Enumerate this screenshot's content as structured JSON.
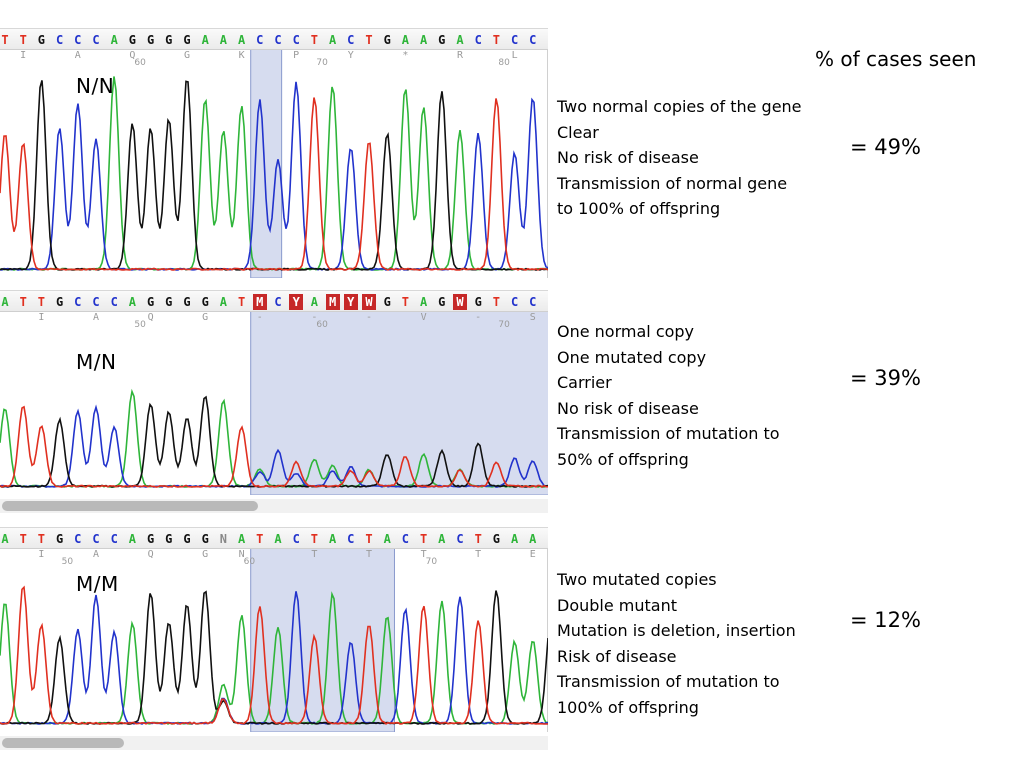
{
  "header": {
    "pct_title": "% of cases seen"
  },
  "colors": {
    "A": "#2fb53a",
    "C": "#2233cc",
    "G": "#111111",
    "T": "#e03020",
    "N": "#888888",
    "amb_bg": "#c62828",
    "highlight": "#d6dcef",
    "highlight_border": "#8a9acd"
  },
  "panels": [
    {
      "genotype": "N/N",
      "sequence": "TTGCCCAGGGGAAACCCTACTGAAGACTCC",
      "amino_acids": [
        {
          "idx": 0,
          "aa": "I"
        },
        {
          "idx": 3,
          "aa": "A"
        },
        {
          "idx": 6,
          "aa": "Q"
        },
        {
          "idx": 9,
          "aa": "G"
        },
        {
          "idx": 12,
          "aa": "K"
        },
        {
          "idx": 15,
          "aa": "P"
        },
        {
          "idx": 18,
          "aa": "Y"
        },
        {
          "idx": 21,
          "aa": "*"
        },
        {
          "idx": 24,
          "aa": "R"
        },
        {
          "idx": 27,
          "aa": "L"
        }
      ],
      "ticks": [
        {
          "idx": 7,
          "label": "60"
        },
        {
          "idx": 17,
          "label": "70"
        },
        {
          "idx": 27,
          "label": "80"
        }
      ],
      "description": [
        "Two normal copies of the gene",
        "Clear",
        "No risk of disease",
        "Transmission of normal gene",
        "to 100% of offspring"
      ],
      "percent": "= 49%"
    },
    {
      "genotype": "M/N",
      "sequence": "ATTGCCCAGGGGATMCYAMYWGTAGWGTCC",
      "ambiguous": [
        14,
        16,
        18,
        19,
        20,
        25
      ],
      "amino_acids": [
        {
          "idx": 1,
          "aa": "I"
        },
        {
          "idx": 4,
          "aa": "A"
        },
        {
          "idx": 7,
          "aa": "Q"
        },
        {
          "idx": 10,
          "aa": "G"
        },
        {
          "idx": 13,
          "aa": "-"
        },
        {
          "idx": 16,
          "aa": "-"
        },
        {
          "idx": 19,
          "aa": "-"
        },
        {
          "idx": 22,
          "aa": "V"
        },
        {
          "idx": 25,
          "aa": "-"
        },
        {
          "idx": 28,
          "aa": "S"
        }
      ],
      "ticks": [
        {
          "idx": 7,
          "label": "50"
        },
        {
          "idx": 17,
          "label": "60"
        },
        {
          "idx": 27,
          "label": "70"
        }
      ],
      "description": [
        "One normal copy",
        "One mutated copy",
        "Carrier",
        "No risk of disease",
        "Transmission of mutation to",
        "50% of offspring"
      ],
      "percent": "= 39%"
    },
    {
      "genotype": "M/M",
      "sequence": "ATTGCCCAGGGGNATACTACTACTACTGAAG",
      "amino_acids": [
        {
          "idx": 1,
          "aa": "I"
        },
        {
          "idx": 4,
          "aa": "A"
        },
        {
          "idx": 7,
          "aa": "Q"
        },
        {
          "idx": 10,
          "aa": "G"
        },
        {
          "idx": 12,
          "aa": "N"
        },
        {
          "idx": 16,
          "aa": "T"
        },
        {
          "idx": 19,
          "aa": "T"
        },
        {
          "idx": 22,
          "aa": "T"
        },
        {
          "idx": 25,
          "aa": "T"
        },
        {
          "idx": 28,
          "aa": "E"
        }
      ],
      "ticks": [
        {
          "idx": 3,
          "label": "50"
        },
        {
          "idx": 13,
          "label": "60"
        },
        {
          "idx": 23,
          "label": "70"
        }
      ],
      "description": [
        "Two mutated copies",
        "Double mutant",
        "Mutation is deletion, insertion",
        "Risk of disease",
        "Transmission of mutation to",
        "100% of offspring"
      ],
      "percent": "= 12%"
    }
  ]
}
